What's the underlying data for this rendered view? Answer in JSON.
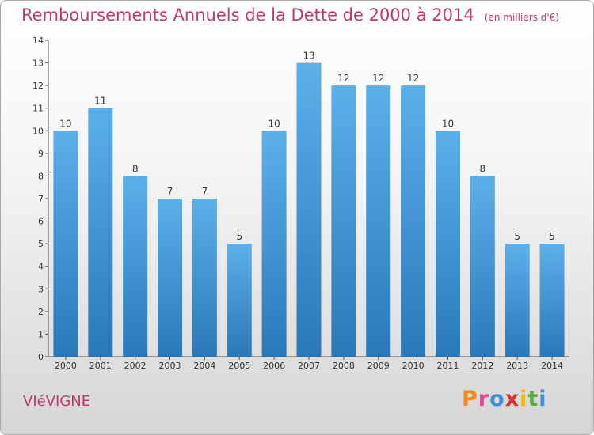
{
  "chart_data": {
    "type": "bar",
    "title": "Remboursements Annuels de la Dette de 2000 à 2014",
    "subtitle": "(en milliers d'€)",
    "categories": [
      "2000",
      "2001",
      "2002",
      "2003",
      "2004",
      "2005",
      "2006",
      "2007",
      "2008",
      "2009",
      "2010",
      "2011",
      "2012",
      "2013",
      "2014"
    ],
    "values": [
      10,
      11,
      8,
      7,
      7,
      5,
      10,
      13,
      12,
      12,
      12,
      10,
      8,
      5,
      5
    ],
    "ylim": [
      0,
      14
    ],
    "yticks": [
      0,
      1,
      2,
      3,
      4,
      5,
      6,
      7,
      8,
      9,
      10,
      11,
      12,
      13,
      14
    ],
    "grid": false,
    "colors": {
      "bar_top": "#5cb0ea",
      "bar_bottom": "#2a78b8",
      "title": "#c0386e"
    }
  },
  "footer": {
    "place": "VIéVIGNE",
    "logo_letters": [
      "P",
      "r",
      "o",
      "x",
      "i",
      "t",
      "i"
    ],
    "logo_colors": [
      "#f08a1c",
      "#e84a8c",
      "#3a8fd8",
      "#d8302a",
      "#f0b800",
      "#56b03c",
      "#3a8fd8"
    ]
  }
}
